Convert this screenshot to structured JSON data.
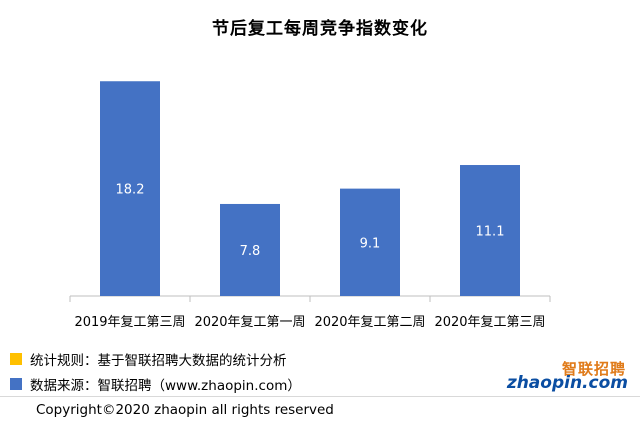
{
  "chart_data": {
    "type": "bar",
    "title": "节后复工每周竞争指数变化",
    "categories": [
      "2019年复工第三周",
      "2020年复工第一周",
      "2020年复工第二周",
      "2020年复工第三周"
    ],
    "values": [
      18.2,
      7.8,
      9.1,
      11.1
    ],
    "data_labels": [
      "18.2",
      "7.8",
      "9.1",
      "11.1"
    ],
    "ylim": [
      0,
      20
    ],
    "bar_color": "#4472c4",
    "label_color": "#ffffff",
    "grid": false,
    "show_y_axis": false
  },
  "legend": {
    "items": [
      {
        "text": "统计规则：基于智联招聘大数据的统计分析",
        "color": "#ffc000"
      },
      {
        "text": "数据来源：智联招聘（www.zhaopin.com）",
        "color": "#4472c4"
      }
    ]
  },
  "logo": {
    "cn": "智联招聘",
    "en": "zhaopin.com"
  },
  "footer": {
    "copyright": "Copyright©2020 zhaopin all rights reserved"
  }
}
